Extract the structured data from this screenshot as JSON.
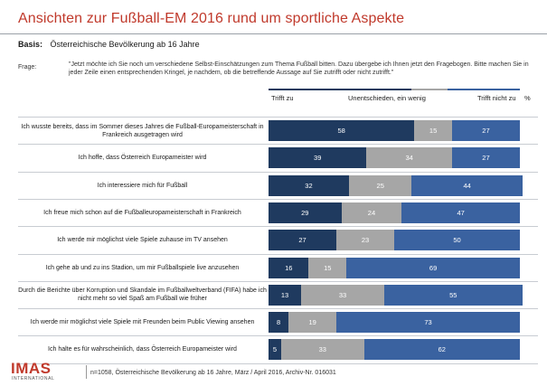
{
  "title": "Ansichten zur Fußball-EM 2016 rund um sportliche Aspekte",
  "basis_label": "Basis:",
  "basis_text": "Österreichische Bevölkerung ab 16 Jahre",
  "frage_label": "Frage:",
  "frage_text": "\"Jetzt möchte ich Sie noch um verschiedene Selbst-Einschätzungen zum Thema Fußball bitten. Dazu übergebe ich Ihnen jetzt den Fragebogen. Bitte machen Sie in jeder Zeile einen entsprechenden Kringel, je nachdem, ob die betreffende Aussage auf Sie zutrifft oder nicht zutrifft.\"",
  "footnote": "n=1058, Österreichische Bevölkerung ab 16 Jahre, März / April 2016, Archiv-Nr. 016031",
  "logo": {
    "text": "IMAS",
    "sub": "INTERNATIONAL"
  },
  "colors": {
    "trifft_zu": "#1f3a5f",
    "unentschieden": "#a6a6a6",
    "trifft_nicht_zu": "#3a62a0",
    "title": "#c0392b"
  },
  "chart_data": {
    "type": "bar",
    "stacked": true,
    "orientation": "horizontal",
    "unit": "%",
    "legend": [
      "Trifft zu",
      "Unentschieden, ein wenig",
      "Trifft nicht zu"
    ],
    "unit_label": "%",
    "categories": [
      "Ich wusste bereits, dass im Sommer dieses Jahres die Fußball-Europameisterschaft in Frankreich ausgetragen wird",
      "Ich hoffe, dass Österreich Europameister wird",
      "Ich interessiere mich für Fußball",
      "Ich freue mich schon auf die Fußballeuropameisterschaft in Frankreich",
      "Ich werde mir möglichst viele Spiele zuhause im TV ansehen",
      "Ich gehe ab und zu ins Stadion, um mir Fußballspiele live anzusehen",
      "Durch die Berichte über Korruption und Skandale im Fußballweltverband (FIFA) habe ich nicht mehr so viel Spaß am Fußball wie früher",
      "Ich werde mir möglichst viele Spiele mit Freunden beim Public Viewing ansehen",
      "Ich halte es für wahrscheinlich, dass Österreich Europameister wird"
    ],
    "series": [
      {
        "name": "Trifft zu",
        "values": [
          58,
          39,
          32,
          29,
          27,
          16,
          13,
          8,
          5
        ]
      },
      {
        "name": "Unentschieden, ein wenig",
        "values": [
          15,
          34,
          25,
          24,
          23,
          15,
          33,
          19,
          33
        ]
      },
      {
        "name": "Trifft nicht zu",
        "values": [
          27,
          27,
          44,
          47,
          50,
          69,
          55,
          73,
          62
        ]
      }
    ],
    "xlim": [
      0,
      100
    ]
  }
}
